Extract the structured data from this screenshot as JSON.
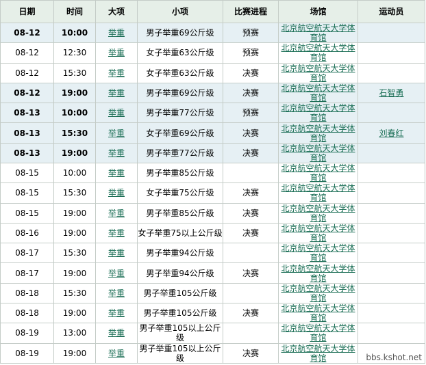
{
  "headers": [
    "日期",
    "时间",
    "大项",
    "小项",
    "比赛进程",
    "场馆",
    "运动员"
  ],
  "rows": [
    {
      "date": "08-12",
      "time": "10:00",
      "sport": "举重",
      "event": "男子举重69公斤级",
      "stage": "预赛",
      "venue": "北京航空航天大学体育馆",
      "athlete": "",
      "hl": true
    },
    {
      "date": "08-12",
      "time": "12:30",
      "sport": "举重",
      "event": "女子举重63公斤级",
      "stage": "预赛",
      "venue": "北京航空航天大学体育馆",
      "athlete": "",
      "hl": false
    },
    {
      "date": "08-12",
      "time": "15:30",
      "sport": "举重",
      "event": "女子举重63公斤级",
      "stage": "决赛",
      "venue": "北京航空航天大学体育馆",
      "athlete": "",
      "hl": false
    },
    {
      "date": "08-12",
      "time": "19:00",
      "sport": "举重",
      "event": "男子举重69公斤级",
      "stage": "决赛",
      "venue": "北京航空航天大学体育馆",
      "athlete": "石智勇",
      "hl": true
    },
    {
      "date": "08-13",
      "time": "10:00",
      "sport": "举重",
      "event": "男子举重77公斤级",
      "stage": "预赛",
      "venue": "北京航空航天大学体育馆",
      "athlete": "",
      "hl": true
    },
    {
      "date": "08-13",
      "time": "15:30",
      "sport": "举重",
      "event": "女子举重69公斤级",
      "stage": "决赛",
      "venue": "北京航空航天大学体育馆",
      "athlete": "刘春红",
      "hl": true
    },
    {
      "date": "08-13",
      "time": "19:00",
      "sport": "举重",
      "event": "男子举重77公斤级",
      "stage": "决赛",
      "venue": "北京航空航天大学体育馆",
      "athlete": "",
      "hl": true
    },
    {
      "date": "08-15",
      "time": "10:00",
      "sport": "举重",
      "event": "男子举重85公斤级",
      "stage": "",
      "venue": "北京航空航天大学体育馆",
      "athlete": "",
      "hl": false
    },
    {
      "date": "08-15",
      "time": "15:30",
      "sport": "举重",
      "event": "女子举重75公斤级",
      "stage": "决赛",
      "venue": "北京航空航天大学体育馆",
      "athlete": "",
      "hl": false
    },
    {
      "date": "08-15",
      "time": "19:00",
      "sport": "举重",
      "event": "男子举重85公斤级",
      "stage": "决赛",
      "venue": "北京航空航天大学体育馆",
      "athlete": "",
      "hl": false
    },
    {
      "date": "08-16",
      "time": "19:00",
      "sport": "举重",
      "event": "女子举重75以上公斤级",
      "stage": "决赛",
      "venue": "北京航空航天大学体育馆",
      "athlete": "",
      "hl": false
    },
    {
      "date": "08-17",
      "time": "15:30",
      "sport": "举重",
      "event": "男子举重94公斤级",
      "stage": "",
      "venue": "北京航空航天大学体育馆",
      "athlete": "",
      "hl": false
    },
    {
      "date": "08-17",
      "time": "19:00",
      "sport": "举重",
      "event": "男子举重94公斤级",
      "stage": "决赛",
      "venue": "北京航空航天大学体育馆",
      "athlete": "",
      "hl": false
    },
    {
      "date": "08-18",
      "time": "15:30",
      "sport": "举重",
      "event": "男子举重105公斤级",
      "stage": "",
      "venue": "北京航空航天大学体育馆",
      "athlete": "",
      "hl": false
    },
    {
      "date": "08-18",
      "time": "19:00",
      "sport": "举重",
      "event": "男子举重105公斤级",
      "stage": "决赛",
      "venue": "北京航空航天大学体育馆",
      "athlete": "",
      "hl": false
    },
    {
      "date": "08-19",
      "time": "13:00",
      "sport": "举重",
      "event": "男子举重105以上公斤级",
      "stage": "",
      "venue": "北京航空航天大学体育馆",
      "athlete": "",
      "hl": false
    },
    {
      "date": "08-19",
      "time": "19:00",
      "sport": "举重",
      "event": "男子举重105以上公斤级",
      "stage": "决赛",
      "venue": "北京航空航天大学体育馆",
      "athlete": "",
      "hl": false
    }
  ],
  "watermark": "bbs.kshot.net"
}
